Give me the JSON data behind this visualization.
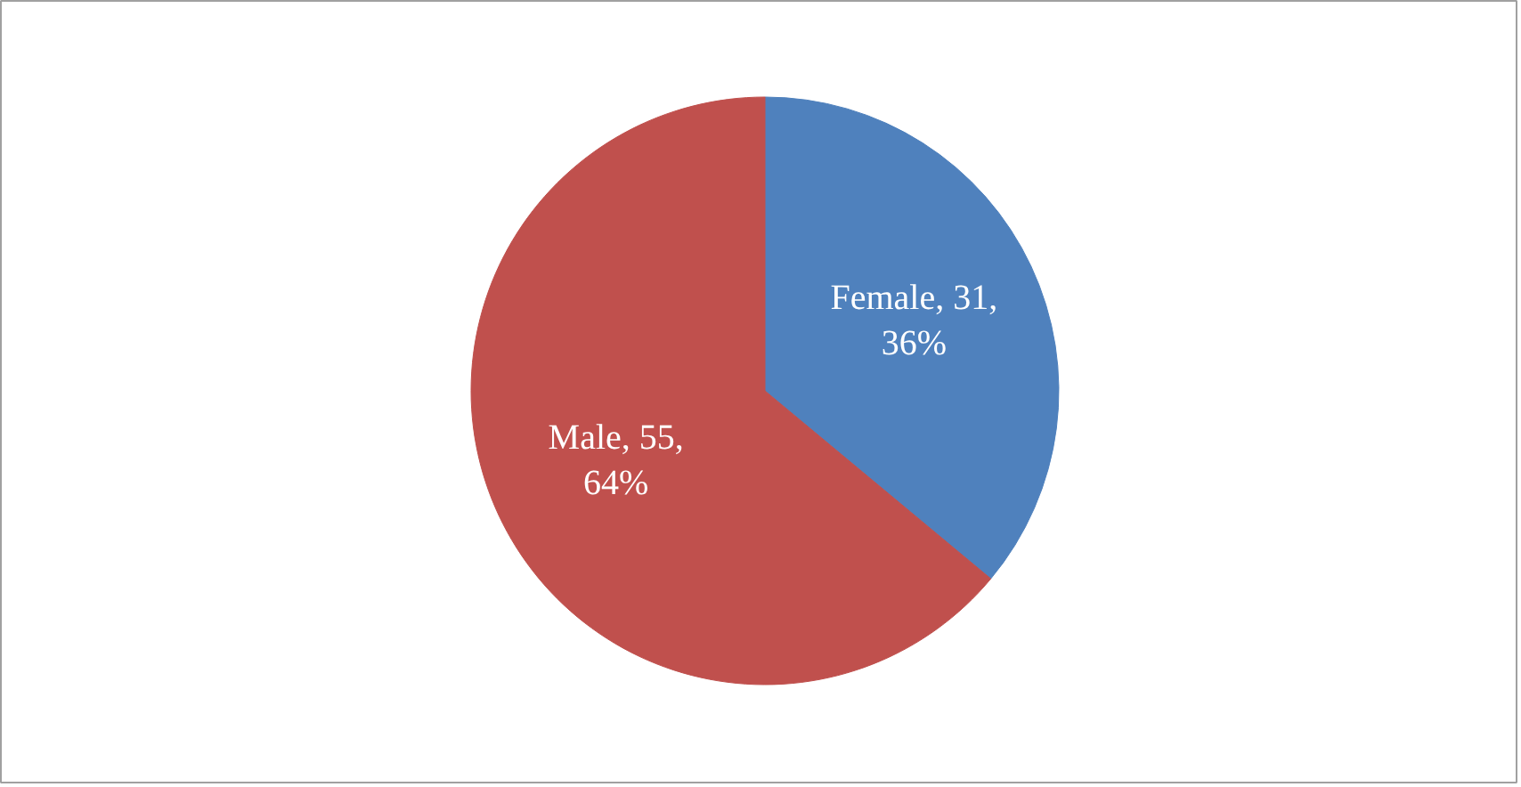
{
  "chart_data": {
    "type": "pie",
    "categories": [
      "Female",
      "Male"
    ],
    "values": [
      31,
      55
    ],
    "colors": [
      "#4f81bd",
      "#c0504d"
    ],
    "value_labels": [
      "31, 36%",
      "55, 64%"
    ],
    "legend": false
  }
}
